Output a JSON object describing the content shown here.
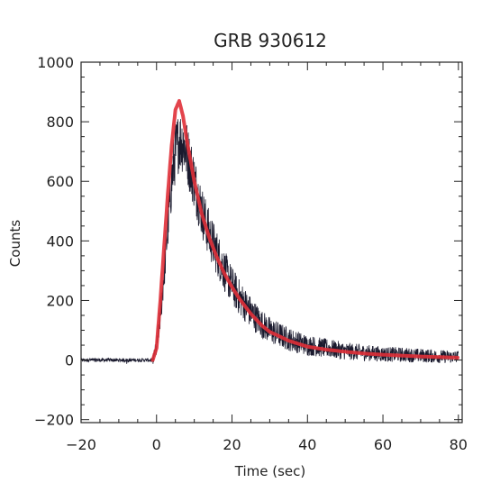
{
  "chart_data": {
    "type": "line",
    "title": "GRB 930612",
    "xlabel": "Time (sec)",
    "ylabel": "Counts",
    "xlim": [
      -20,
      81
    ],
    "ylim": [
      -210,
      1000
    ],
    "x_ticks": [
      -20,
      0,
      20,
      40,
      60,
      80
    ],
    "y_ticks": [
      -200,
      0,
      200,
      400,
      600,
      800,
      1000
    ],
    "grid": false,
    "legend": "none",
    "series": [
      {
        "style": "noisy-data",
        "color": "#1a1a2e",
        "x": [
          -20,
          -10,
          -2,
          -1,
          0,
          1,
          2,
          3,
          4,
          5,
          6,
          7,
          8,
          10,
          12,
          14,
          16,
          18,
          20,
          22,
          25,
          28,
          30,
          35,
          40,
          45,
          50,
          55,
          60,
          65,
          70,
          75,
          80
        ],
        "y": [
          0,
          0,
          0,
          0,
          40,
          150,
          300,
          450,
          600,
          700,
          740,
          730,
          700,
          600,
          500,
          420,
          360,
          300,
          250,
          210,
          160,
          120,
          100,
          70,
          50,
          40,
          30,
          25,
          20,
          18,
          15,
          12,
          10
        ]
      },
      {
        "style": "fit",
        "color": "#e03038",
        "x": [
          -1,
          0,
          1,
          2,
          3,
          4,
          5,
          6,
          7,
          8,
          10,
          12,
          14,
          16,
          18,
          20,
          22,
          25,
          28,
          30,
          35,
          40,
          45,
          50,
          55,
          60,
          65,
          70,
          75,
          80
        ],
        "y": [
          0,
          40,
          200,
          380,
          560,
          720,
          840,
          870,
          820,
          740,
          600,
          490,
          410,
          345,
          290,
          245,
          205,
          155,
          115,
          95,
          65,
          45,
          35,
          28,
          22,
          18,
          15,
          12,
          10,
          8
        ]
      }
    ]
  }
}
